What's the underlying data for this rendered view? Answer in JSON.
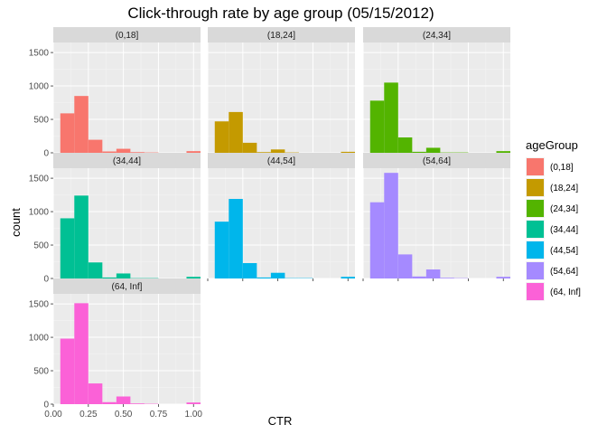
{
  "chart_data": {
    "type": "bar",
    "title": "Click-through rate by age group (05/15/2012)",
    "xlabel": "CTR",
    "ylabel": "count",
    "xlim": [
      0,
      1.05
    ],
    "ylim": [
      0,
      1650
    ],
    "x_ticks": [
      0.0,
      0.25,
      0.5,
      0.75,
      1.0
    ],
    "x_tick_labels": [
      "0.00",
      "0.25",
      "0.50",
      "0.75",
      "1.00"
    ],
    "y_ticks": [
      0,
      500,
      1000,
      1500
    ],
    "y_tick_labels": [
      "0",
      "500",
      "1000",
      "1500"
    ],
    "bin_width": 0.1,
    "bin_centers": [
      0.1,
      0.2,
      0.3,
      0.4,
      0.5,
      0.6,
      0.7,
      0.8,
      0.9,
      1.0
    ],
    "legend": {
      "title": "ageGroup",
      "position": "right"
    },
    "grid": true,
    "series": [
      {
        "name": "(0,18]",
        "color": "#F8766D",
        "values": [
          590,
          850,
          195,
          20,
          60,
          10,
          5,
          0,
          0,
          25
        ]
      },
      {
        "name": "(18,24]",
        "color": "#C49A00",
        "values": [
          470,
          610,
          150,
          10,
          50,
          5,
          0,
          0,
          0,
          15
        ]
      },
      {
        "name": "(24,34]",
        "color": "#53B400",
        "values": [
          780,
          1050,
          230,
          15,
          75,
          5,
          5,
          0,
          0,
          25
        ]
      },
      {
        "name": "(34,44]",
        "color": "#00C094",
        "values": [
          900,
          1240,
          240,
          15,
          75,
          5,
          5,
          0,
          0,
          25
        ]
      },
      {
        "name": "(44,54]",
        "color": "#00B6EB",
        "values": [
          850,
          1190,
          230,
          15,
          85,
          5,
          5,
          0,
          0,
          25
        ]
      },
      {
        "name": "(54,64]",
        "color": "#A58AFF",
        "values": [
          1140,
          1580,
          360,
          30,
          135,
          10,
          5,
          0,
          0,
          25
        ]
      },
      {
        "name": "(64, Inf]",
        "color": "#FB61D7",
        "values": [
          980,
          1510,
          310,
          30,
          115,
          10,
          5,
          0,
          0,
          25
        ]
      }
    ]
  }
}
